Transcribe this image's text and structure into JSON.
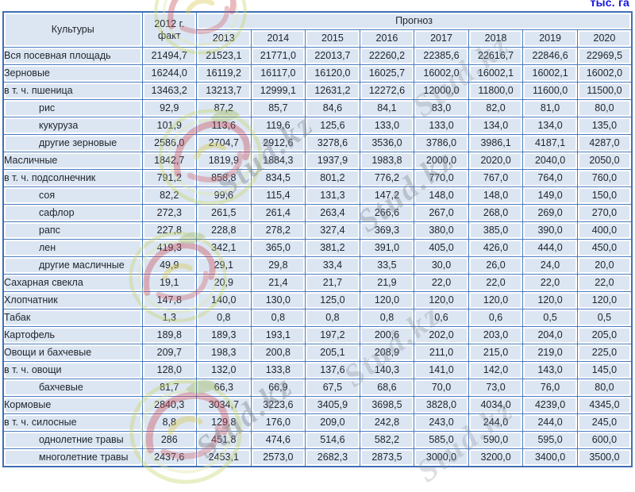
{
  "unit_label": "тыс. га",
  "watermark": {
    "text": "Stud.kz"
  },
  "table": {
    "first_col_header": "Культуры",
    "fact_header": [
      "2012 г.",
      "факт"
    ],
    "col_group_label": "Прогноз",
    "years": [
      "2013",
      "2014",
      "2015",
      "2016",
      "2017",
      "2018",
      "2019",
      "2020"
    ],
    "rows": [
      {
        "label": "Вся посевная площадь",
        "indent": 0,
        "values": [
          "21494,7",
          "21523,1",
          "21771,0",
          "22013,7",
          "22260,2",
          "22385,6",
          "22616,7",
          "22846,6",
          "22969,5"
        ]
      },
      {
        "label": "Зерновые",
        "indent": 0,
        "values": [
          "16244,0",
          "16119,2",
          "16117,0",
          "16120,0",
          "16025,7",
          "16002,0",
          "16002,1",
          "16002,1",
          "16002,0"
        ]
      },
      {
        "label": "в т. ч. пшеница",
        "indent": 0,
        "values": [
          "13463,2",
          "13213,7",
          "12999,1",
          "12631,2",
          "12272,6",
          "12000,0",
          "11800,0",
          "11600,0",
          "11500,0"
        ]
      },
      {
        "label": "рис",
        "indent": 1,
        "values": [
          "92,9",
          "87,2",
          "85,7",
          "84,6",
          "84,1",
          "83,0",
          "82,0",
          "81,0",
          "80,0"
        ]
      },
      {
        "label": "кукуруза",
        "indent": 1,
        "values": [
          "101,9",
          "113,6",
          "119,6",
          "125,6",
          "133,0",
          "133,0",
          "134,0",
          "134,0",
          "135,0"
        ]
      },
      {
        "label": "другие зерновые",
        "indent": 1,
        "values": [
          "2586,0",
          "2704,7",
          "2912,6",
          "3278,6",
          "3536,0",
          "3786,0",
          "3986,1",
          "4187,1",
          "4287,0"
        ]
      },
      {
        "label": "Масличные",
        "indent": 0,
        "values": [
          "1842,7",
          "1819,9",
          "1884,3",
          "1937,9",
          "1983,8",
          "2000,0",
          "2020,0",
          "2040,0",
          "2050,0"
        ]
      },
      {
        "label": "в т. ч. подсолнечник",
        "indent": 0,
        "values": [
          "791,2",
          "858,8",
          "834,5",
          "801,2",
          "776,2",
          "770,0",
          "767,0",
          "764,0",
          "760,0"
        ]
      },
      {
        "label": "соя",
        "indent": 1,
        "values": [
          "82,2",
          "99,6",
          "115,4",
          "131,3",
          "147,2",
          "148,0",
          "148,0",
          "149,0",
          "150,0"
        ]
      },
      {
        "label": "сафлор",
        "indent": 1,
        "values": [
          "272,3",
          "261,5",
          "261,4",
          "263,4",
          "266,6",
          "267,0",
          "268,0",
          "269,0",
          "270,0"
        ]
      },
      {
        "label": "рапс",
        "indent": 1,
        "values": [
          "227,8",
          "228,8",
          "278,2",
          "327,4",
          "369,3",
          "380,0",
          "385,0",
          "390,0",
          "400,0"
        ]
      },
      {
        "label": "лен",
        "indent": 1,
        "values": [
          "419,3",
          "342,1",
          "365,0",
          "381,2",
          "391,0",
          "405,0",
          "426,0",
          "444,0",
          "450,0"
        ]
      },
      {
        "label": "другие масличные",
        "indent": 1,
        "values": [
          "49,9",
          "29,1",
          "29,8",
          "33,4",
          "33,5",
          "30,0",
          "26,0",
          "24,0",
          "20,0"
        ]
      },
      {
        "label": "Сахарная свекла",
        "indent": 0,
        "values": [
          "19,1",
          "20,9",
          "21,4",
          "21,7",
          "21,9",
          "22,0",
          "22,0",
          "22,0",
          "22,0"
        ]
      },
      {
        "label": "Хлопчатник",
        "indent": 0,
        "values": [
          "147,8",
          "140,0",
          "130,0",
          "125,0",
          "120,0",
          "120,0",
          "120,0",
          "120,0",
          "120,0"
        ]
      },
      {
        "label": "Табак",
        "indent": 0,
        "values": [
          "1,3",
          "0,8",
          "0,8",
          "0,8",
          "0,8",
          "0,6",
          "0,6",
          "0,5",
          "0,5"
        ]
      },
      {
        "label": "Картофель",
        "indent": 0,
        "values": [
          "189,8",
          "189,3",
          "193,1",
          "197,2",
          "200,6",
          "202,0",
          "203,0",
          "204,0",
          "205,0"
        ]
      },
      {
        "label": "Овощи и бахчевые",
        "indent": 0,
        "values": [
          "209,7",
          "198,3",
          "200,8",
          "205,1",
          "208,9",
          "211,0",
          "215,0",
          "219,0",
          "225,0"
        ]
      },
      {
        "label": "в т. ч. овощи",
        "indent": 0,
        "values": [
          "128,0",
          "132,0",
          "133,8",
          "137,6",
          "140,3",
          "141,0",
          "142,0",
          "143,0",
          "145,0"
        ]
      },
      {
        "label": "бахчевые",
        "indent": 1,
        "values": [
          "81,7",
          "66,3",
          "66,9",
          "67,5",
          "68,6",
          "70,0",
          "73,0",
          "76,0",
          "80,0"
        ]
      },
      {
        "label": "Кормовые",
        "indent": 0,
        "values": [
          "2840,3",
          "3034,7",
          "3223,6",
          "3405,9",
          "3698,5",
          "3828,0",
          "4034,0",
          "4239,0",
          "4345,0"
        ]
      },
      {
        "label": "в т. ч. силосные",
        "indent": 0,
        "values": [
          "8,8",
          "129,8",
          "176,0",
          "209,0",
          "242,8",
          "243,0",
          "244,0",
          "244,0",
          "245,0"
        ]
      },
      {
        "label": "однолетние травы",
        "indent": 1,
        "values": [
          "286",
          "451,8",
          "474,6",
          "514,6",
          "582,2",
          "585,0",
          "590,0",
          "595,0",
          "600,0"
        ]
      },
      {
        "label": "многолетние травы",
        "indent": 1,
        "values": [
          "2437,6",
          "2453,1",
          "2573,0",
          "2682,3",
          "2873,5",
          "3000,0",
          "3200,0",
          "3400,0",
          "3500,0"
        ]
      }
    ]
  }
}
